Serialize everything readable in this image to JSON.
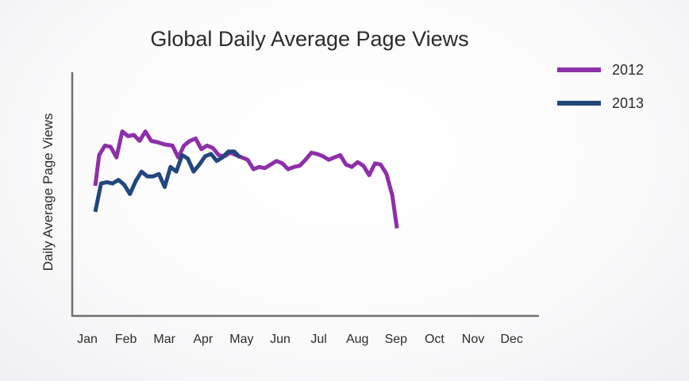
{
  "chart_data": {
    "type": "line",
    "title": "Global Daily Average Page Views",
    "xlabel": "",
    "ylabel": "Daily Average Page Views",
    "categories": [
      "Jan",
      "Feb",
      "Mar",
      "Apr",
      "May",
      "Jun",
      "Jul",
      "Aug",
      "Sep",
      "Oct",
      "Nov",
      "Dec"
    ],
    "ylim": [
      0,
      100
    ],
    "grid": false,
    "legend_position": "top-right",
    "series": [
      {
        "name": "2012",
        "color": "#8e2faa",
        "points": [
          [
            0.0,
            55
          ],
          [
            0.1,
            68
          ],
          [
            0.25,
            72
          ],
          [
            0.4,
            71.5
          ],
          [
            0.55,
            67
          ],
          [
            0.7,
            78
          ],
          [
            0.85,
            76
          ],
          [
            1.0,
            76.5
          ],
          [
            1.15,
            74
          ],
          [
            1.3,
            78
          ],
          [
            1.45,
            74
          ],
          [
            1.6,
            73.5
          ],
          [
            1.8,
            72.5
          ],
          [
            2.0,
            72
          ],
          [
            2.15,
            67
          ],
          [
            2.3,
            72
          ],
          [
            2.45,
            74
          ],
          [
            2.6,
            75
          ],
          [
            2.75,
            70.5
          ],
          [
            2.9,
            72
          ],
          [
            3.05,
            71
          ],
          [
            3.2,
            68
          ],
          [
            3.35,
            67.5
          ],
          [
            3.5,
            69
          ],
          [
            3.65,
            68
          ],
          [
            3.8,
            67
          ],
          [
            3.95,
            66
          ],
          [
            4.1,
            62
          ],
          [
            4.25,
            63
          ],
          [
            4.4,
            62.5
          ],
          [
            4.55,
            64
          ],
          [
            4.7,
            65.5
          ],
          [
            4.85,
            64.5
          ],
          [
            5.0,
            62
          ],
          [
            5.15,
            63
          ],
          [
            5.3,
            63.5
          ],
          [
            5.45,
            66
          ],
          [
            5.6,
            69
          ],
          [
            5.75,
            68.5
          ],
          [
            5.9,
            67.5
          ],
          [
            6.05,
            66
          ],
          [
            6.2,
            67
          ],
          [
            6.35,
            68
          ],
          [
            6.5,
            64
          ],
          [
            6.65,
            63
          ],
          [
            6.8,
            65
          ],
          [
            6.95,
            63.5
          ],
          [
            7.1,
            59.5
          ],
          [
            7.25,
            64.5
          ],
          [
            7.4,
            64
          ],
          [
            7.55,
            60
          ],
          [
            7.7,
            51
          ],
          [
            7.82,
            37
          ]
        ]
      },
      {
        "name": "2013",
        "color": "#22477d",
        "points": [
          [
            0.0,
            44
          ],
          [
            0.15,
            56
          ],
          [
            0.3,
            56.5
          ],
          [
            0.45,
            56
          ],
          [
            0.6,
            57.5
          ],
          [
            0.75,
            55.5
          ],
          [
            0.9,
            51.5
          ],
          [
            1.05,
            57
          ],
          [
            1.2,
            61
          ],
          [
            1.35,
            59
          ],
          [
            1.5,
            59
          ],
          [
            1.65,
            60
          ],
          [
            1.8,
            54.5
          ],
          [
            1.95,
            63
          ],
          [
            2.1,
            61
          ],
          [
            2.25,
            68
          ],
          [
            2.4,
            66.5
          ],
          [
            2.55,
            61
          ],
          [
            2.7,
            64
          ],
          [
            2.85,
            67.5
          ],
          [
            3.0,
            68.5
          ],
          [
            3.15,
            65.5
          ],
          [
            3.3,
            67
          ],
          [
            3.45,
            69.5
          ],
          [
            3.6,
            69.5
          ],
          [
            3.75,
            67
          ]
        ]
      }
    ]
  }
}
